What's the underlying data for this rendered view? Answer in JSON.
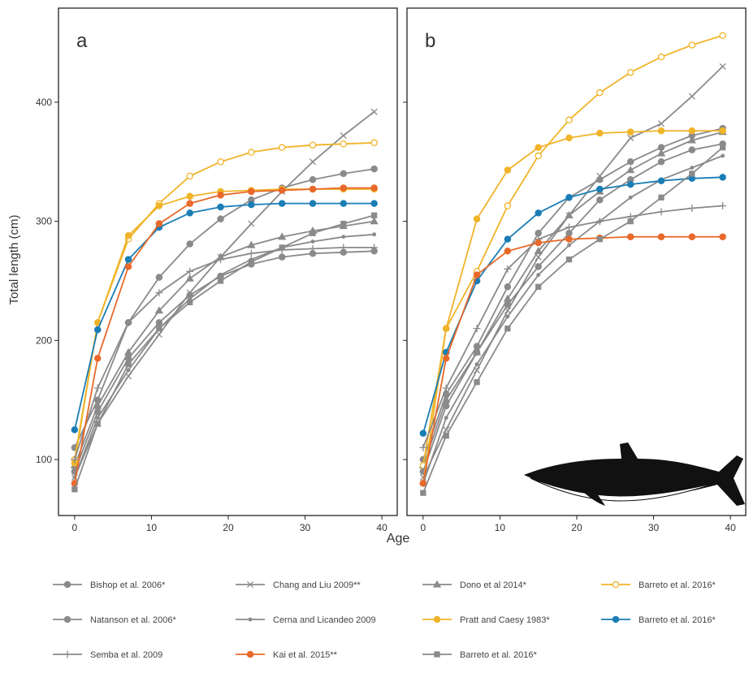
{
  "chart_data": [
    {
      "type": "line",
      "panel_label": "a",
      "y_label": "Total length (cm)",
      "x_label": "Age",
      "xlim": [
        -2.1,
        42
      ],
      "ylim": [
        53,
        479
      ],
      "xticks": [
        0,
        10,
        20,
        30,
        40
      ],
      "yticks": [
        100,
        200,
        300,
        400
      ],
      "x": [
        0,
        3,
        7,
        11,
        15,
        19,
        23,
        27,
        31,
        35,
        39
      ],
      "series": [
        {
          "name": "Bishop et al. 2006*",
          "color": "#8a8a8a",
          "marker": "circle",
          "values": [
            110,
            150,
            215,
            253,
            281,
            302,
            318,
            328,
            335,
            340,
            344
          ]
        },
        {
          "name": "Chang and Liu 2009**",
          "color": "#8a8a8a",
          "marker": "x",
          "values": [
            85,
            130,
            170,
            205,
            240,
            270,
            298,
            325,
            350,
            372,
            392
          ]
        },
        {
          "name": "Dono et al 2014*",
          "color": "#8a8a8a",
          "marker": "triangle",
          "values": [
            95,
            145,
            190,
            225,
            252,
            270,
            280,
            287,
            292,
            296,
            300
          ]
        },
        {
          "name": "Barreto et al. 2016*",
          "color": "#f0b429",
          "marker": "open-circle",
          "values": [
            100,
            215,
            285,
            315,
            338,
            350,
            358,
            362,
            364,
            365,
            366
          ]
        },
        {
          "name": "Natanson et al. 2006*",
          "color": "#8a8a8a",
          "marker": "circle",
          "values": [
            90,
            140,
            185,
            215,
            238,
            254,
            264,
            270,
            273,
            274,
            275
          ]
        },
        {
          "name": "Cerna and Licandeo 2009",
          "color": "#8a8a8a",
          "marker": "dot",
          "values": [
            85,
            135,
            175,
            210,
            235,
            255,
            268,
            278,
            283,
            287,
            289
          ]
        },
        {
          "name": "Pratt and Caesy 1983*",
          "color": "#f0b429",
          "marker": "circle",
          "values": [
            97,
            215,
            288,
            313,
            321,
            325,
            326,
            327,
            327,
            327,
            327
          ]
        },
        {
          "name": "Barreto et al. 2016*",
          "color": "#1a7db5",
          "marker": "circle",
          "values": [
            125,
            209,
            268,
            295,
            307,
            312,
            314,
            315,
            315,
            315,
            315
          ]
        },
        {
          "name": "Semba et al. 2009",
          "color": "#8a8a8a",
          "marker": "plus",
          "values": [
            100,
            160,
            215,
            240,
            258,
            268,
            273,
            276,
            277,
            278,
            278
          ]
        },
        {
          "name": "Kai et al. 2015**",
          "color": "#e8692a",
          "marker": "circle",
          "values": [
            80,
            185,
            262,
            298,
            315,
            322,
            325,
            326,
            327,
            328,
            328
          ]
        },
        {
          "name": "Barreto et al. 2016*",
          "color": "#8a8a8a",
          "marker": "square",
          "values": [
            75,
            130,
            180,
            210,
            232,
            250,
            266,
            278,
            290,
            298,
            305
          ]
        }
      ]
    },
    {
      "type": "line",
      "panel_label": "b",
      "xlim": [
        -2.1,
        42
      ],
      "ylim": [
        53,
        479
      ],
      "xticks": [
        0,
        10,
        20,
        30,
        40
      ],
      "yticks": [
        100,
        200,
        300,
        400
      ],
      "x": [
        0,
        3,
        7,
        11,
        15,
        19,
        23,
        27,
        31,
        35,
        39
      ],
      "series": [
        {
          "color": "#8a8a8a",
          "marker": "circle",
          "values": [
            100,
            155,
            195,
            245,
            290,
            320,
            335,
            350,
            362,
            372,
            378
          ]
        },
        {
          "color": "#8a8a8a",
          "marker": "x",
          "values": [
            85,
            125,
            175,
            225,
            270,
            305,
            338,
            370,
            382,
            405,
            430
          ]
        },
        {
          "color": "#8a8a8a",
          "marker": "triangle",
          "values": [
            95,
            150,
            190,
            235,
            275,
            305,
            325,
            343,
            357,
            368,
            375
          ]
        },
        {
          "color": "#f0b429",
          "marker": "open-circle",
          "values": [
            95,
            210,
            258,
            313,
            355,
            385,
            408,
            425,
            438,
            448,
            456
          ]
        },
        {
          "color": "#8a8a8a",
          "marker": "circle",
          "values": [
            90,
            145,
            190,
            230,
            262,
            290,
            318,
            335,
            350,
            360,
            365
          ]
        },
        {
          "color": "#8a8a8a",
          "marker": "dot",
          "values": [
            80,
            135,
            180,
            220,
            255,
            280,
            300,
            320,
            335,
            345,
            355
          ]
        },
        {
          "color": "#f0b429",
          "marker": "circle",
          "values": [
            80,
            210,
            302,
            343,
            362,
            370,
            374,
            375,
            376,
            376,
            376
          ]
        },
        {
          "color": "#1a7db5",
          "marker": "circle",
          "values": [
            122,
            190,
            250,
            285,
            307,
            320,
            327,
            331,
            334,
            336,
            337
          ]
        },
        {
          "color": "#8a8a8a",
          "marker": "plus",
          "values": [
            110,
            160,
            210,
            260,
            285,
            295,
            300,
            304,
            308,
            311,
            313
          ]
        },
        {
          "color": "#e8692a",
          "marker": "circle",
          "values": [
            80,
            185,
            255,
            275,
            282,
            285,
            286,
            287,
            287,
            287,
            287
          ]
        },
        {
          "color": "#8a8a8a",
          "marker": "square",
          "values": [
            72,
            120,
            165,
            210,
            245,
            268,
            285,
            300,
            320,
            340,
            362
          ]
        }
      ]
    }
  ]
}
